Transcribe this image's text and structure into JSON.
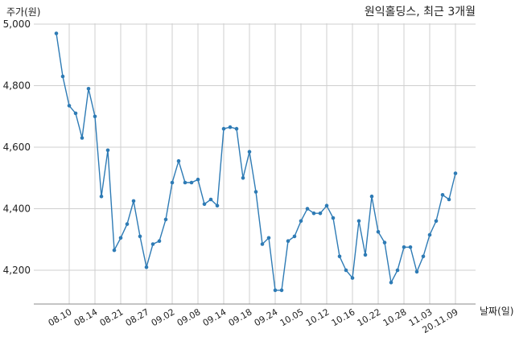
{
  "chart_data": {
    "type": "line",
    "title": "원익홀딩스, 최근 3개월",
    "ylabel": "주가(원)",
    "xlabel": "날짜(일)",
    "ylim": [
      4090,
      5000
    ],
    "yticks": [
      4200,
      4400,
      4600,
      4800,
      5000
    ],
    "ytick_labels": [
      "4,200",
      "4,400",
      "4,600",
      "4,800",
      "5,000"
    ],
    "xtick_labels": [
      "08.10",
      "08.14",
      "08.21",
      "08.27",
      "09.02",
      "09.08",
      "09.14",
      "09.18",
      "09.24",
      "10.05",
      "10.12",
      "10.16",
      "10.22",
      "10.28",
      "11.03",
      "20.11.09"
    ],
    "xtick_index": [
      2,
      6,
      10,
      14,
      18,
      22,
      26,
      30,
      34,
      38,
      42,
      46,
      50,
      54,
      58,
      62
    ],
    "grid": true,
    "color": "#2e7bb5",
    "series": [
      {
        "values": [
          4970,
          4830,
          4735,
          4710,
          4630,
          4790,
          4700,
          4440,
          4590,
          4265,
          4305,
          4350,
          4425,
          4310,
          4210,
          4285,
          4295,
          4365,
          4485,
          4555,
          4485,
          4485,
          4495,
          4415,
          4430,
          4410,
          4660,
          4665,
          4660,
          4500,
          4585,
          4455,
          4285,
          4305,
          4135,
          4135,
          4295,
          4310,
          4360,
          4400,
          4385,
          4385,
          4410,
          4370,
          4245,
          4200,
          4175,
          4360,
          4250,
          4440,
          4325,
          4290,
          4160,
          4200,
          4275,
          4275,
          4195,
          4245,
          4315,
          4360,
          4445,
          4430,
          4515
        ]
      }
    ]
  }
}
